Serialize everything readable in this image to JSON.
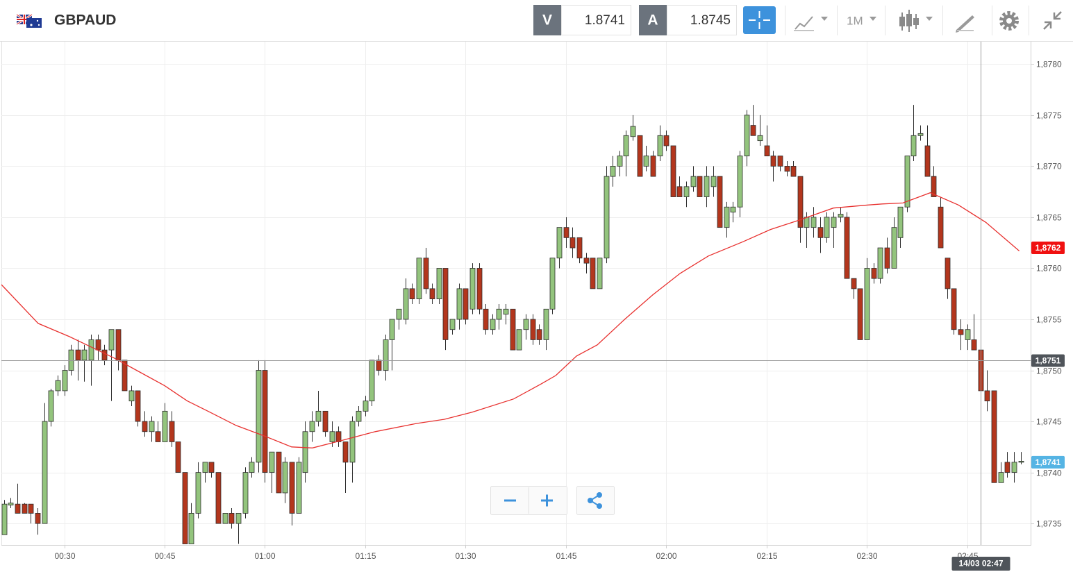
{
  "toolbar": {
    "symbol": "GBPAUD",
    "sell": {
      "label": "V",
      "price": "1.8741"
    },
    "buy": {
      "label": "A",
      "price": "1.8745"
    },
    "timeframe": "1M"
  },
  "chart_data": {
    "type": "candlestick",
    "grid": true,
    "up_color": "#93c47d",
    "down_color": "#b3361d",
    "border_color": "#2e2e2e",
    "xlim": [
      20.6,
      174.5
    ],
    "xticks": [
      {
        "value": 30,
        "label": "00:30"
      },
      {
        "value": 45,
        "label": "00:45"
      },
      {
        "value": 60,
        "label": "01:00"
      },
      {
        "value": 75,
        "label": "01:15"
      },
      {
        "value": 90,
        "label": "01:30"
      },
      {
        "value": 105,
        "label": "01:45"
      },
      {
        "value": 120,
        "label": "02:00"
      },
      {
        "value": 135,
        "label": "02:15"
      },
      {
        "value": 150,
        "label": "02:30"
      },
      {
        "value": 165,
        "label": "02:45"
      }
    ],
    "ylim": [
      1.87329,
      1.87822
    ],
    "yticks": [
      {
        "value": 1.8735,
        "label": "1,8735"
      },
      {
        "value": 1.874,
        "label": "1,8740"
      },
      {
        "value": 1.8745,
        "label": "1,8745"
      },
      {
        "value": 1.875,
        "label": "1,8750"
      },
      {
        "value": 1.8755,
        "label": "1,8755"
      },
      {
        "value": 1.876,
        "label": "1,8760"
      },
      {
        "value": 1.8765,
        "label": "1,8765"
      },
      {
        "value": 1.877,
        "label": "1,8770"
      },
      {
        "value": 1.8775,
        "label": "1,8775"
      },
      {
        "value": 1.878,
        "label": "1,8780"
      }
    ],
    "x": [
      21,
      22,
      23,
      24,
      25,
      26,
      27,
      28,
      29,
      30,
      31,
      32,
      33,
      34,
      35,
      36,
      37,
      38,
      39,
      40,
      41,
      42,
      43,
      44,
      45,
      46,
      47,
      48,
      49,
      50,
      51,
      52,
      53,
      54,
      55,
      56,
      57,
      58,
      59,
      60,
      61,
      62,
      63,
      64,
      65,
      66,
      67,
      68,
      69,
      70,
      71,
      72,
      73,
      74,
      75,
      76,
      77,
      78,
      79,
      80,
      81,
      82,
      83,
      84,
      85,
      86,
      87,
      88,
      89,
      90,
      91,
      92,
      93,
      94,
      95,
      96,
      97,
      98,
      99,
      100,
      101,
      102,
      103,
      104,
      105,
      106,
      107,
      108,
      109,
      110,
      111,
      112,
      113,
      114,
      115,
      116,
      117,
      118,
      119,
      120,
      121,
      122,
      123,
      124,
      125,
      126,
      127,
      128,
      129,
      130,
      131,
      132,
      133,
      134,
      135,
      136,
      137,
      138,
      139,
      140,
      141,
      142,
      143,
      144,
      145,
      146,
      147,
      148,
      149,
      150,
      151,
      152,
      153,
      154,
      155,
      156,
      157,
      158,
      159,
      160,
      161,
      162,
      163,
      164,
      165,
      166,
      167,
      168,
      169,
      170,
      171,
      172,
      173
    ],
    "open": [
      1.87339,
      1.87368,
      1.87369,
      1.87369,
      1.87369,
      1.8736,
      1.8735,
      1.8745,
      1.8748,
      1.8748,
      1.875,
      1.8752,
      1.8751,
      1.8751,
      1.8753,
      1.8752,
      1.8752,
      1.8754,
      1.8751,
      1.8747,
      1.8748,
      1.8745,
      1.8744,
      1.8744,
      1.8743,
      1.8745,
      1.8743,
      1.874,
      1.8733,
      1.8736,
      1.874,
      1.8741,
      1.874,
      1.8735,
      1.8736,
      1.8735,
      1.8736,
      1.874,
      1.8741,
      1.875,
      1.874,
      1.8742,
      1.8738,
      1.8741,
      1.8736,
      1.874,
      1.8744,
      1.8745,
      1.8746,
      1.8743,
      1.8744,
      1.8743,
      1.8741,
      1.8745,
      1.8746,
      1.8747,
      1.8751,
      1.875,
      1.8753,
      1.8755,
      1.8755,
      1.8758,
      1.8757,
      1.8761,
      1.8758,
      1.8757,
      1.876,
      1.8754,
      1.8755,
      1.8758,
      1.8756,
      1.876,
      1.8756,
      1.8754,
      1.8755,
      1.87555,
      1.8756,
      1.8752,
      1.8754,
      1.8755,
      1.8754,
      1.8753,
      1.8756,
      1.8761,
      1.8764,
      1.8763,
      1.8763,
      1.8761,
      1.8761,
      1.8758,
      1.8761,
      1.8769,
      1.877,
      1.8771,
      1.87729,
      1.8773,
      1.877,
      1.8771,
      1.8771,
      1.8773,
      1.8772,
      1.8768,
      1.8767,
      1.8768,
      1.8769,
      1.8767,
      1.8768,
      1.8769,
      1.8764,
      1.87655,
      1.8766,
      1.8771,
      1.8774,
      1.87725,
      1.8772,
      1.8771,
      1.8771,
      1.877,
      1.877,
      1.8769,
      1.8764,
      1.8764,
      1.8764,
      1.8763,
      1.8764,
      1.8765,
      1.8765,
      1.8759,
      1.8758,
      1.8753,
      1.876,
      1.8759,
      1.8762,
      1.876,
      1.8763,
      1.8766,
      1.8771,
      1.8773,
      1.8772,
      1.8769,
      1.8766,
      1.8761,
      1.8758,
      1.8754,
      1.8753,
      1.8753,
      1.8752,
      1.8748,
      1.8748,
      1.8739,
      1.8741,
      1.874,
      1.8741
    ],
    "high": [
      1.87373,
      1.87375,
      1.87389,
      1.8737,
      1.87369,
      1.87365,
      1.87468,
      1.87482,
      1.87495,
      1.87505,
      1.87525,
      1.8753,
      1.87525,
      1.87535,
      1.87535,
      1.87525,
      1.8754,
      1.8754,
      1.8751,
      1.87485,
      1.8748,
      1.8746,
      1.87455,
      1.8745,
      1.87468,
      1.8746,
      1.8743,
      1.874,
      1.8737,
      1.8741,
      1.8741,
      1.8741,
      1.874,
      1.8736,
      1.87365,
      1.8736,
      1.87405,
      1.87415,
      1.8751,
      1.8751,
      1.8742,
      1.8742,
      1.87415,
      1.8741,
      1.87415,
      1.8745,
      1.8746,
      1.8748,
      1.8746,
      1.8745,
      1.87445,
      1.8743,
      1.87455,
      1.87465,
      1.87475,
      1.8751,
      1.87515,
      1.87535,
      1.8755,
      1.8756,
      1.8759,
      1.87585,
      1.8761,
      1.8762,
      1.87585,
      1.876,
      1.876,
      1.8755,
      1.87585,
      1.8758,
      1.87605,
      1.87605,
      1.87565,
      1.87555,
      1.87565,
      1.87565,
      1.8756,
      1.8754,
      1.87555,
      1.87555,
      1.87545,
      1.8756,
      1.8761,
      1.8764,
      1.8765,
      1.8764,
      1.8763,
      1.87615,
      1.8761,
      1.8761,
      1.877,
      1.8771,
      1.87715,
      1.87735,
      1.8775,
      1.8773,
      1.8772,
      1.87715,
      1.8774,
      1.87735,
      1.8772,
      1.8769,
      1.87685,
      1.877,
      1.8769,
      1.877,
      1.877,
      1.8769,
      1.87665,
      1.87665,
      1.87715,
      1.87755,
      1.8776,
      1.8775,
      1.8774,
      1.87715,
      1.8771,
      1.87705,
      1.87705,
      1.8769,
      1.87655,
      1.8766,
      1.8765,
      1.87655,
      1.87655,
      1.8766,
      1.87655,
      1.8759,
      1.8758,
      1.8761,
      1.87605,
      1.8762,
      1.8763,
      1.8765,
      1.8766,
      1.8771,
      1.8776,
      1.8774,
      1.8774,
      1.877,
      1.8767,
      1.8761,
      1.8758,
      1.8755,
      1.87545,
      1.87555,
      1.8752,
      1.875,
      1.8748,
      1.8741,
      1.8742,
      1.8742,
      1.8742
    ],
    "low": [
      1.87339,
      1.87365,
      1.8736,
      1.8736,
      1.8735,
      1.87339,
      1.8735,
      1.87445,
      1.87475,
      1.87475,
      1.87495,
      1.8749,
      1.87489,
      1.87485,
      1.8751,
      1.87505,
      1.8747,
      1.875,
      1.8748,
      1.87465,
      1.87445,
      1.87435,
      1.8743,
      1.8743,
      1.8743,
      1.87425,
      1.874,
      1.8733,
      1.8733,
      1.87355,
      1.8739,
      1.87395,
      1.8735,
      1.8735,
      1.87345,
      1.8733,
      1.87355,
      1.87395,
      1.874,
      1.8739,
      1.8738,
      1.8738,
      1.8737,
      1.87348,
      1.8736,
      1.8739,
      1.8743,
      1.87445,
      1.87435,
      1.87425,
      1.87425,
      1.8738,
      1.8739,
      1.87445,
      1.87455,
      1.87465,
      1.87495,
      1.8749,
      1.875,
      1.8754,
      1.87545,
      1.87565,
      1.87565,
      1.87575,
      1.87565,
      1.87565,
      1.8752,
      1.87535,
      1.8754,
      1.87545,
      1.87555,
      1.87555,
      1.87535,
      1.87535,
      1.8754,
      1.87545,
      1.8752,
      1.8752,
      1.8753,
      1.87525,
      1.87525,
      1.8752,
      1.87555,
      1.876,
      1.8762,
      1.8761,
      1.87605,
      1.87595,
      1.8758,
      1.8758,
      1.87605,
      1.8768,
      1.8769,
      1.8769,
      1.87725,
      1.8769,
      1.87695,
      1.8769,
      1.87705,
      1.87715,
      1.8767,
      1.8767,
      1.8766,
      1.87675,
      1.8767,
      1.8766,
      1.8767,
      1.8764,
      1.8763,
      1.87645,
      1.8765,
      1.877,
      1.8773,
      1.8772,
      1.8771,
      1.87685,
      1.87695,
      1.8769,
      1.8769,
      1.87625,
      1.8762,
      1.8763,
      1.87615,
      1.87625,
      1.8762,
      1.87645,
      1.8759,
      1.8757,
      1.8753,
      1.8753,
      1.87585,
      1.87585,
      1.87595,
      1.876,
      1.8762,
      1.87655,
      1.87705,
      1.87725,
      1.8769,
      1.8767,
      1.8762,
      1.8757,
      1.87535,
      1.8752,
      1.8752,
      1.8752,
      1.8747,
      1.8746,
      1.8739,
      1.8739,
      1.87395,
      1.8739,
      1.87408
    ],
    "close": [
      1.87369,
      1.8737,
      1.8736,
      1.8736,
      1.8736,
      1.8735,
      1.8745,
      1.8748,
      1.8749,
      1.875,
      1.8752,
      1.8751,
      1.8752,
      1.8753,
      1.8752,
      1.8751,
      1.8754,
      1.8751,
      1.8748,
      1.8748,
      1.8745,
      1.8744,
      1.8745,
      1.8743,
      1.8746,
      1.8743,
      1.874,
      1.8733,
      1.8736,
      1.874,
      1.8741,
      1.874,
      1.8735,
      1.8736,
      1.8735,
      1.8736,
      1.874,
      1.8741,
      1.875,
      1.874,
      1.8742,
      1.8738,
      1.8741,
      1.8736,
      1.8741,
      1.8744,
      1.8745,
      1.8746,
      1.8744,
      1.8744,
      1.8743,
      1.8741,
      1.8745,
      1.8746,
      1.8747,
      1.8751,
      1.875,
      1.8753,
      1.8755,
      1.8756,
      1.8758,
      1.8757,
      1.8761,
      1.8758,
      1.8757,
      1.876,
      1.8753,
      1.8755,
      1.8758,
      1.8755,
      1.876,
      1.8756,
      1.8754,
      1.8755,
      1.8756,
      1.8756,
      1.8752,
      1.8754,
      1.8755,
      1.8753,
      1.8753,
      1.8756,
      1.8761,
      1.8764,
      1.8763,
      1.8762,
      1.8761,
      1.87605,
      1.8758,
      1.8761,
      1.8769,
      1.877,
      1.8771,
      1.8773,
      1.87739,
      1.8769,
      1.8771,
      1.8769,
      1.8773,
      1.8772,
      1.8767,
      1.8767,
      1.8768,
      1.8769,
      1.8767,
      1.8769,
      1.8769,
      1.8764,
      1.8766,
      1.8766,
      1.8771,
      1.8775,
      1.8773,
      1.8773,
      1.8771,
      1.877,
      1.877,
      1.87695,
      1.8769,
      1.8764,
      1.8765,
      1.8765,
      1.8763,
      1.8765,
      1.8765,
      1.87653,
      1.8759,
      1.8758,
      1.8753,
      1.876,
      1.8759,
      1.8762,
      1.876,
      1.8764,
      1.8766,
      1.8771,
      1.8773,
      1.87732,
      1.8769,
      1.8767,
      1.8762,
      1.8758,
      1.8754,
      1.87535,
      1.8754,
      1.8752,
      1.8748,
      1.8747,
      1.8739,
      1.874,
      1.874,
      1.8741,
      1.87411
    ],
    "moving_average": {
      "color": "#e8312f",
      "x": [
        20.6,
        26.1,
        30.8,
        37.5,
        41.1,
        45,
        48.4,
        51.5,
        55.7,
        59.8,
        64,
        67.1,
        71.3,
        76.5,
        82.7,
        86.8,
        91,
        97.2,
        101.4,
        103.5,
        106.6,
        109.7,
        113.8,
        118,
        122.1,
        126.3,
        131.5,
        135.6,
        139.8,
        145,
        150.2,
        152.3,
        155.4,
        159.5,
        163.7,
        167.8,
        172.8
      ],
      "values": [
        1.87584,
        1.87546,
        1.87533,
        1.87512,
        1.87499,
        1.87485,
        1.8747,
        1.8746,
        1.87446,
        1.87436,
        1.87425,
        1.87424,
        1.87431,
        1.8744,
        1.87448,
        1.87452,
        1.87459,
        1.87472,
        1.87487,
        1.87495,
        1.87514,
        1.87525,
        1.8755,
        1.87574,
        1.87595,
        1.87612,
        1.87626,
        1.87638,
        1.87647,
        1.87659,
        1.87662,
        1.87663,
        1.87664,
        1.87674,
        1.87662,
        1.87645,
        1.87617
      ]
    },
    "crosshair": {
      "color": "#9a9a9a",
      "x": {
        "value": 167,
        "label": "14/03 02:47"
      },
      "y": {
        "value": 1.8751,
        "label": "1,8751"
      }
    },
    "price_tags": [
      {
        "value": 1.8762,
        "label": "1,8762",
        "color": "#f01010"
      },
      {
        "value": 1.8741,
        "label": "1,8741",
        "color": "#55b4e4"
      }
    ]
  }
}
